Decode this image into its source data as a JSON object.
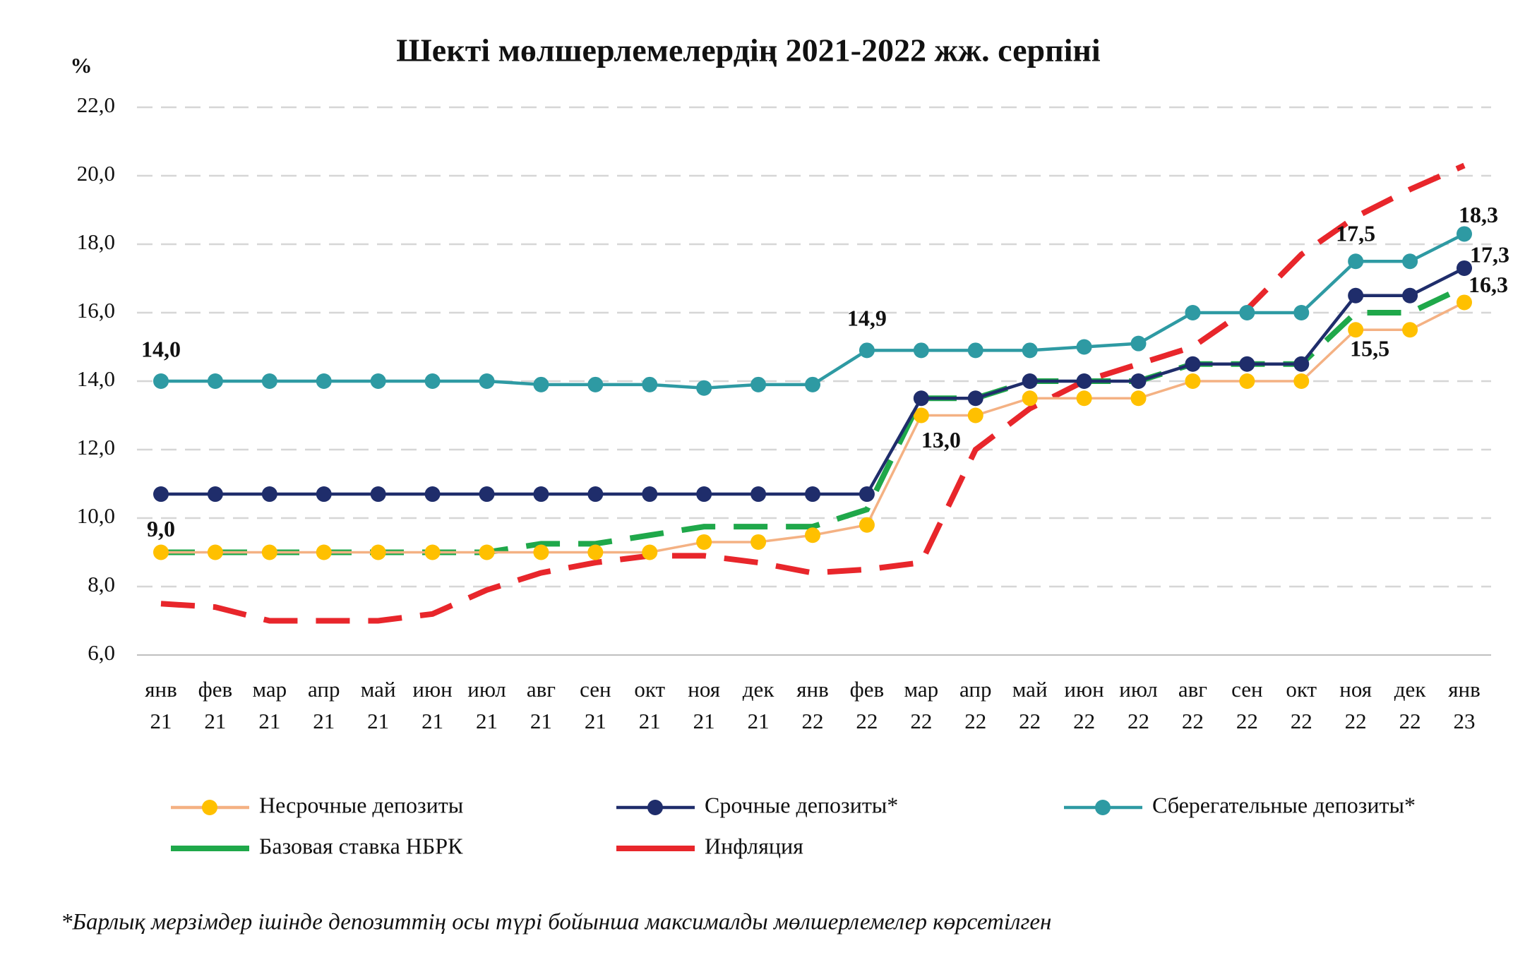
{
  "chart_data": {
    "type": "line",
    "title": "Шекті мөлшерлемелердің 2021-2022 жж. серпіні",
    "y_label": "%",
    "footnote": "*Барлық мерзімдер  ішінде депозиттің осы түрі бойынша максималды мөлшерлемелер  көрсетілген",
    "categories": [
      [
        "янв",
        "21"
      ],
      [
        "фев",
        "21"
      ],
      [
        "мар",
        "21"
      ],
      [
        "апр",
        "21"
      ],
      [
        "май",
        "21"
      ],
      [
        "июн",
        "21"
      ],
      [
        "июл",
        "21"
      ],
      [
        "авг",
        "21"
      ],
      [
        "сен",
        "21"
      ],
      [
        "окт",
        "21"
      ],
      [
        "ноя",
        "21"
      ],
      [
        "дек",
        "21"
      ],
      [
        "янв",
        "22"
      ],
      [
        "фев",
        "22"
      ],
      [
        "мар",
        "22"
      ],
      [
        "апр",
        "22"
      ],
      [
        "май",
        "22"
      ],
      [
        "июн",
        "22"
      ],
      [
        "июл",
        "22"
      ],
      [
        "авг",
        "22"
      ],
      [
        "сен",
        "22"
      ],
      [
        "окт",
        "22"
      ],
      [
        "ноя",
        "22"
      ],
      [
        "дек",
        "22"
      ],
      [
        "янв",
        "23"
      ]
    ],
    "ylim": [
      6,
      22
    ],
    "yticks": [
      {
        "value": 6,
        "label": "6,0"
      },
      {
        "value": 8,
        "label": "8,0"
      },
      {
        "value": 10,
        "label": "10,0"
      },
      {
        "value": 12,
        "label": "12,0"
      },
      {
        "value": 14,
        "label": "14,0"
      },
      {
        "value": 16,
        "label": "16,0"
      },
      {
        "value": 18,
        "label": "18,0"
      },
      {
        "value": 20,
        "label": "20,0"
      },
      {
        "value": 22,
        "label": "22,0"
      }
    ],
    "grid": true,
    "series": [
      {
        "name": "Несрочные депозиты",
        "color": "#f4b183",
        "marker_color": "#ffc000",
        "dashed": false,
        "markers": true,
        "values": [
          9.0,
          9.0,
          9.0,
          9.0,
          9.0,
          9.0,
          9.0,
          9.0,
          9.0,
          9.0,
          9.3,
          9.3,
          9.5,
          9.8,
          13.0,
          13.0,
          13.5,
          13.5,
          13.5,
          14.0,
          14.0,
          14.0,
          15.5,
          15.5,
          16.3
        ],
        "value_labels": [
          "9,0",
          null,
          null,
          null,
          null,
          null,
          null,
          null,
          null,
          null,
          null,
          null,
          null,
          null,
          "13,0",
          null,
          null,
          null,
          null,
          null,
          null,
          null,
          "15,5",
          null,
          "16,3"
        ]
      },
      {
        "name": "Срочные депозиты*",
        "color": "#1f2d6b",
        "marker_color": "#1f2d6b",
        "dashed": false,
        "markers": true,
        "values": [
          10.7,
          10.7,
          10.7,
          10.7,
          10.7,
          10.7,
          10.7,
          10.7,
          10.7,
          10.7,
          10.7,
          10.7,
          10.7,
          10.7,
          13.5,
          13.5,
          14.0,
          14.0,
          14.0,
          14.5,
          14.5,
          14.5,
          16.5,
          16.5,
          17.3
        ],
        "value_labels": [
          null,
          null,
          null,
          null,
          null,
          null,
          null,
          null,
          null,
          null,
          null,
          null,
          null,
          null,
          null,
          null,
          null,
          null,
          null,
          null,
          null,
          null,
          null,
          null,
          "17,3"
        ]
      },
      {
        "name": "Сберегательные депозиты*",
        "color": "#2e9aa3",
        "marker_color": "#2e9aa3",
        "dashed": false,
        "markers": true,
        "values": [
          14.0,
          14.0,
          14.0,
          14.0,
          14.0,
          14.0,
          14.0,
          13.9,
          13.9,
          13.9,
          13.8,
          13.9,
          13.9,
          14.9,
          14.9,
          14.9,
          14.9,
          15.0,
          15.1,
          16.0,
          16.0,
          16.0,
          17.5,
          17.5,
          18.3
        ],
        "value_labels": [
          "14,0",
          null,
          null,
          null,
          null,
          null,
          null,
          null,
          null,
          null,
          null,
          null,
          null,
          "14,9",
          null,
          null,
          null,
          null,
          null,
          null,
          null,
          null,
          "17,5",
          null,
          "18,3"
        ]
      },
      {
        "name": "Базовая ставка НБРК",
        "color": "#1fa84a",
        "dashed": true,
        "markers": false,
        "values": [
          9.0,
          9.0,
          9.0,
          9.0,
          9.0,
          9.0,
          9.0,
          9.25,
          9.25,
          9.5,
          9.75,
          9.75,
          9.75,
          10.25,
          13.5,
          13.5,
          14.0,
          14.0,
          14.0,
          14.5,
          14.5,
          14.5,
          16.0,
          16.0,
          16.75
        ]
      },
      {
        "name": "Инфляция",
        "color": "#e8262b",
        "dashed": true,
        "markers": false,
        "values": [
          7.5,
          7.4,
          7.0,
          7.0,
          7.0,
          7.2,
          7.9,
          8.4,
          8.7,
          8.9,
          8.9,
          8.7,
          8.4,
          8.5,
          8.7,
          12.0,
          13.2,
          14.0,
          14.5,
          15.0,
          16.1,
          17.7,
          18.8,
          19.6,
          20.3
        ]
      }
    ]
  }
}
